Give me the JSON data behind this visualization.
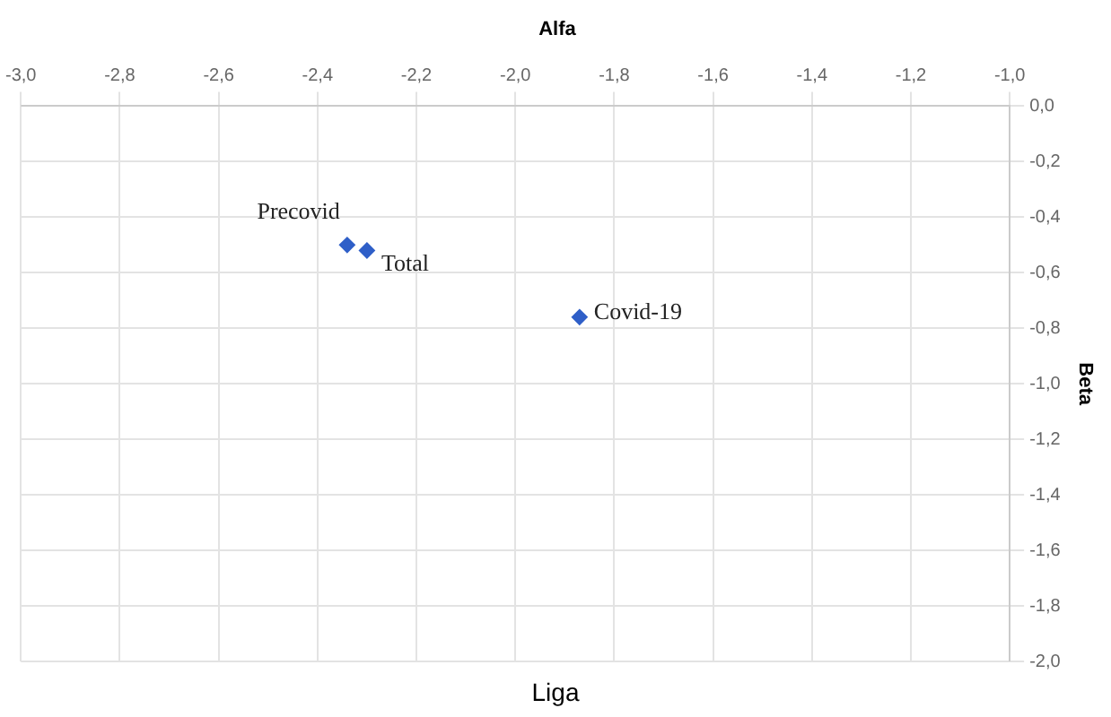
{
  "chart_data": {
    "type": "scatter",
    "title": "Alfa",
    "ylabel": "Beta",
    "x": [
      -2.34,
      -2.3,
      -1.87
    ],
    "series": [
      {
        "color": "#2f5fc8",
        "values": [
          -0.5,
          -0.52,
          -0.76
        ]
      }
    ],
    "xlim": [
      -3,
      -1
    ],
    "ylim": [
      -2,
      0
    ],
    "xticks": [
      {
        "value": -3,
        "label": "-3,0"
      },
      {
        "value": -2.8,
        "label": "-2,8"
      },
      {
        "value": -2.6,
        "label": "-2,6"
      },
      {
        "value": -2.4,
        "label": "-2,4"
      },
      {
        "value": -2.2,
        "label": "-2,2"
      },
      {
        "value": -2,
        "label": "-2,0"
      },
      {
        "value": -1.8,
        "label": "-1,8"
      },
      {
        "value": -1.6,
        "label": "-1,6"
      },
      {
        "value": -1.4,
        "label": "-1,4"
      },
      {
        "value": -1.2,
        "label": "-1,2"
      },
      {
        "value": -1,
        "label": "-1,0"
      }
    ],
    "yticks": [
      {
        "value": 0,
        "label": "0,0"
      },
      {
        "value": -0.2,
        "label": "-0,2"
      },
      {
        "value": -0.4,
        "label": "-0,4"
      },
      {
        "value": -0.6,
        "label": "-0,6"
      },
      {
        "value": -0.8,
        "label": "-0,8"
      },
      {
        "value": -1,
        "label": "-1,0"
      },
      {
        "value": -1.2,
        "label": "-1,2"
      },
      {
        "value": -1.4,
        "label": "-1,4"
      },
      {
        "value": -1.6,
        "label": "-1,6"
      },
      {
        "value": -1.8,
        "label": "-1,8"
      },
      {
        "value": -2,
        "label": "-2,0"
      }
    ],
    "annotations": [
      {
        "text": "Precovid",
        "x": -2.34,
        "y": -0.5
      },
      {
        "text": "Total",
        "x": -2.3,
        "y": -0.52
      },
      {
        "text": "Covid-19",
        "x": -1.87,
        "y": -0.76
      },
      "Liga"
    ],
    "grid": true,
    "legend": false,
    "marker": "diamond"
  }
}
